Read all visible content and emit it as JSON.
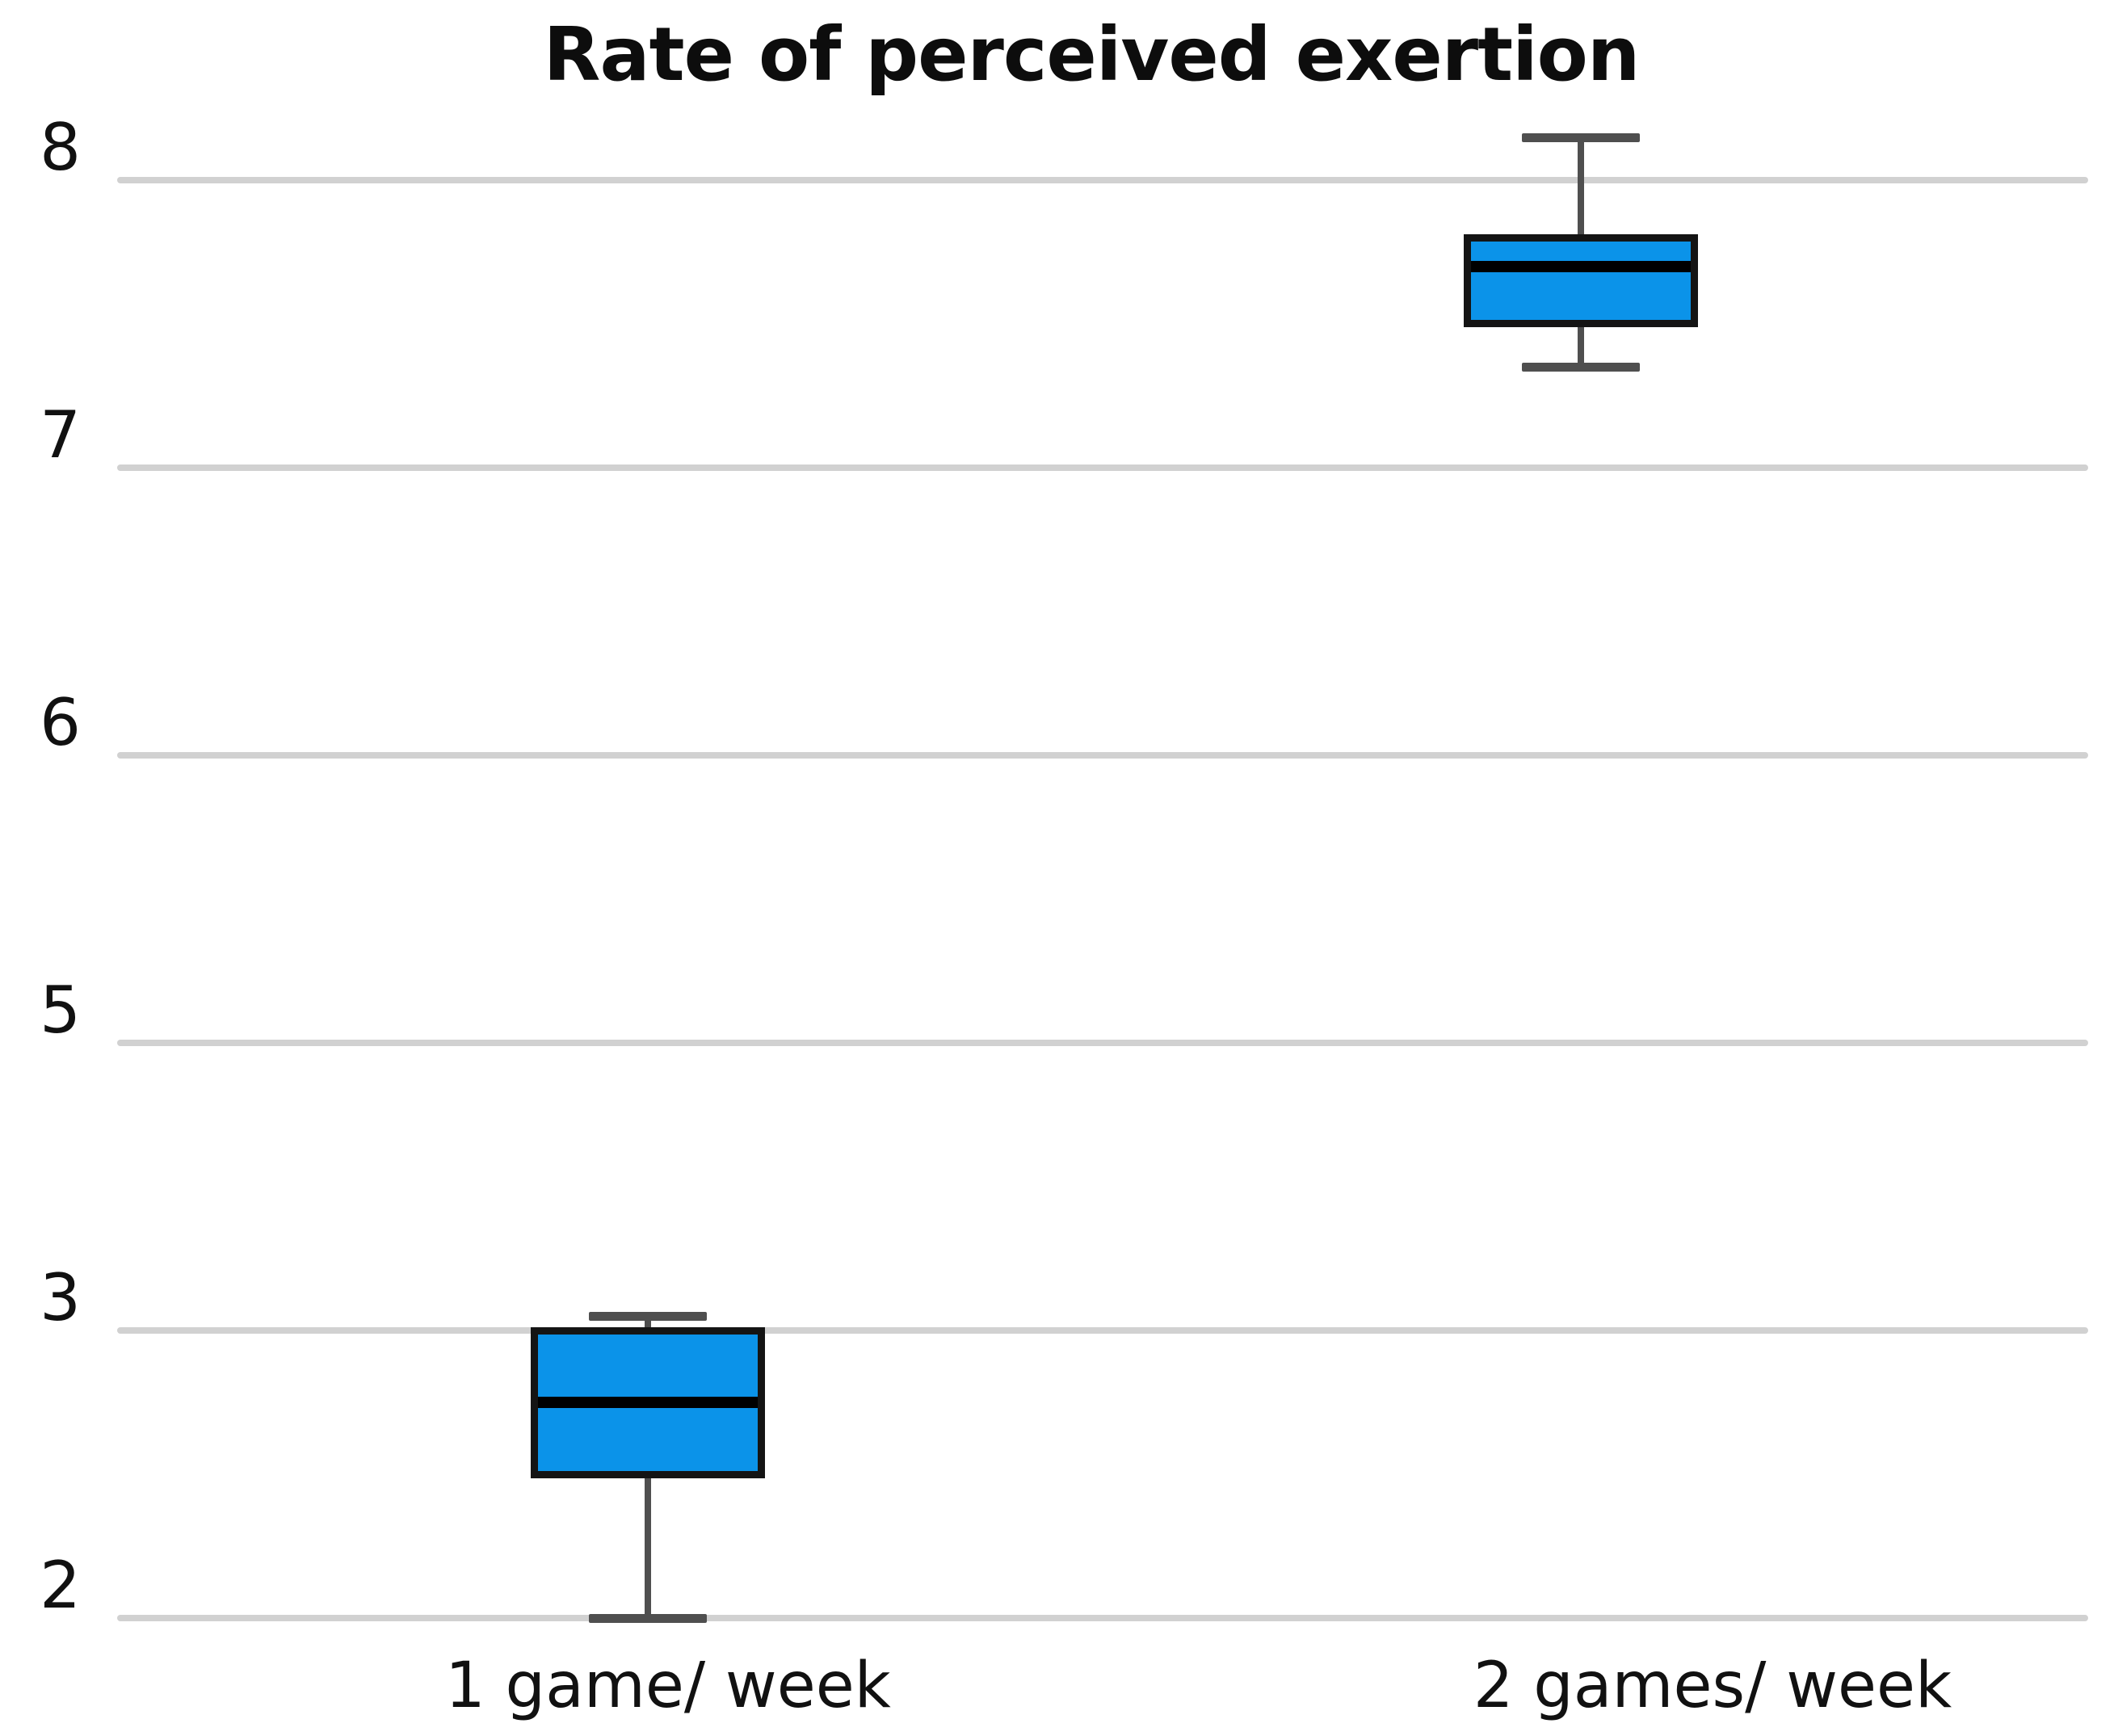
{
  "title": "Rate of perceived exertion",
  "y_axis": {
    "tick_labels": [
      "8",
      "7",
      "6",
      "5",
      "3",
      "2"
    ]
  },
  "x_axis": {
    "categories": [
      "1 game/ week",
      "2 games/ week"
    ]
  },
  "chart_data": {
    "type": "boxplot",
    "title": "Rate of perceived exertion",
    "categories": [
      "1 game/ week",
      "2 games/ week"
    ],
    "series": [
      {
        "name": "1 game/ week",
        "whisker_low": 2.0,
        "q1": 2.5,
        "median": 2.75,
        "q3": 3.0,
        "whisker_high": 3.1
      },
      {
        "name": "2 games/ week",
        "whisker_low": 7.35,
        "q1": 7.5,
        "median": 7.7,
        "q3": 7.8,
        "whisker_high": 8.15
      }
    ],
    "y_ticks": [
      8,
      7,
      6,
      5,
      3,
      2
    ],
    "xlabel": "",
    "ylabel": "",
    "grid": true,
    "legend": "none",
    "axis_note": "gridlines equally spaced; value 4 is skipped on the axis",
    "colors": {
      "box_fill": "#0b93e9",
      "box_border": "#141414",
      "median": "#000000",
      "whisker": "#4f4f4f",
      "gridline": "#d1d1d1",
      "text": "#111111"
    }
  }
}
